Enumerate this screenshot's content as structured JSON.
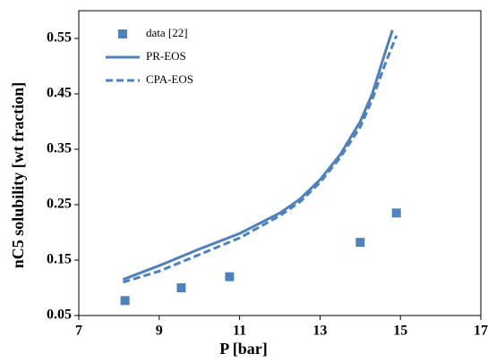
{
  "chart_data": {
    "type": "line",
    "xlabel": "P [bar]",
    "ylabel": "nC5 solubility [wt fraction]",
    "xlim": [
      7,
      17
    ],
    "xticks": [
      7,
      9,
      11,
      13,
      15,
      17
    ],
    "ylim": [
      0.05,
      0.6
    ],
    "yticks": [
      0.05,
      0.15,
      0.25,
      0.35,
      0.45,
      0.55
    ],
    "legend": "upper left",
    "series": [
      {
        "name": "data [22]",
        "color": "#4f81bd",
        "style": "markers",
        "x": [
          8.15,
          9.55,
          10.75,
          14.0,
          14.9
        ],
        "values": [
          0.077,
          0.1,
          0.12,
          0.182,
          0.235
        ]
      },
      {
        "name": "PR-EOS",
        "color": "#4f81bd",
        "style": "solid",
        "x": [
          8.1,
          9,
          10,
          11,
          12,
          12.5,
          13,
          13.5,
          14,
          14.3,
          14.6,
          14.8
        ],
        "values": [
          0.115,
          0.14,
          0.17,
          0.198,
          0.235,
          0.26,
          0.295,
          0.34,
          0.4,
          0.45,
          0.52,
          0.565
        ]
      },
      {
        "name": "CPA-EOS",
        "color": "#4f81bd",
        "style": "dashed",
        "x": [
          8.1,
          9,
          10,
          11,
          12,
          12.5,
          13,
          13.5,
          14,
          14.3,
          14.6,
          14.9
        ],
        "values": [
          0.11,
          0.13,
          0.16,
          0.19,
          0.23,
          0.255,
          0.29,
          0.335,
          0.39,
          0.44,
          0.5,
          0.555
        ]
      }
    ]
  }
}
